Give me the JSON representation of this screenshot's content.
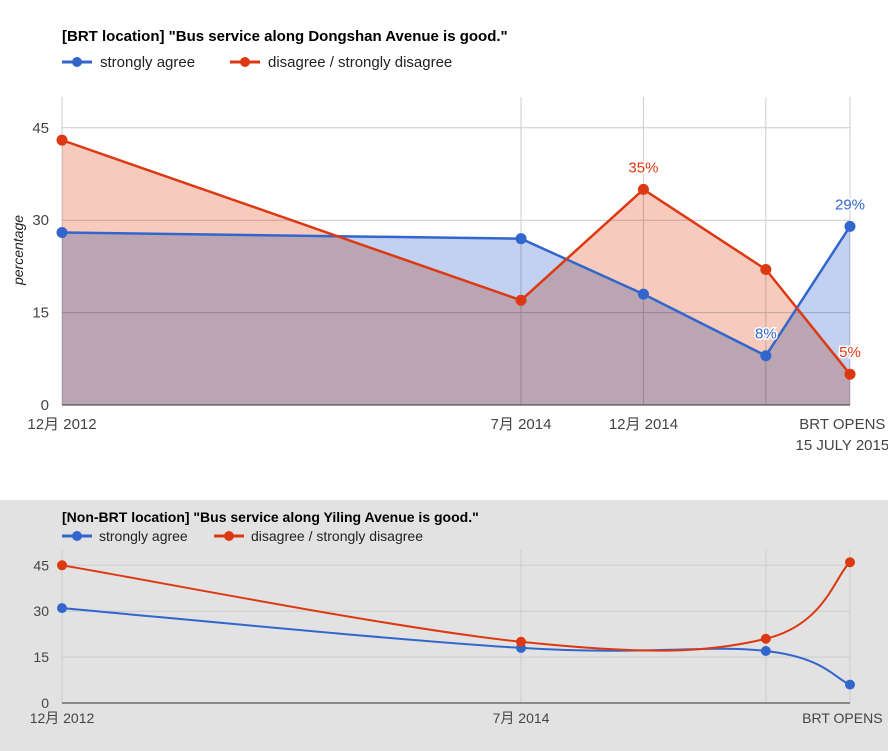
{
  "chart_data": [
    {
      "type": "area",
      "title": "[BRT location] \"Bus service along Dongshan Avenue is good.\"",
      "xlabel": "",
      "ylabel": "percentage",
      "ylim": [
        0,
        50
      ],
      "yticks": [
        0,
        15,
        30,
        45
      ],
      "grid": true,
      "legend": "top-left",
      "x_tick_labels": [
        {
          "label": "12月 2012",
          "at": 0
        },
        {
          "label": "7月 2014",
          "at": 3
        },
        {
          "label": "12月 2014",
          "at": 3.8
        },
        {
          "label": "BRT OPENS",
          "line2": "15 JULY 2015",
          "at": 5.1
        }
      ],
      "series": [
        {
          "name": "strongly agree",
          "color": "#3366cc",
          "fill": "#aec0ec",
          "x": [
            0,
            3,
            3.8,
            4.6,
            5.15
          ],
          "values": [
            28,
            27,
            18,
            8,
            29
          ],
          "annotations": [
            {
              "index": 3,
              "text": "8%"
            },
            {
              "index": 4,
              "text": "29%"
            }
          ]
        },
        {
          "name": "disagree / strongly disagree",
          "color": "#dc3912",
          "fill": "#f3b9a8",
          "x": [
            0,
            3,
            3.8,
            4.6,
            5.15
          ],
          "values": [
            43,
            17,
            35,
            22,
            5
          ],
          "annotations": [
            {
              "index": 2,
              "text": "35%"
            },
            {
              "index": 4,
              "text": "5%"
            }
          ]
        }
      ]
    },
    {
      "type": "line",
      "title": "[Non-BRT location] \"Bus service along Yiling Avenue is good.\"",
      "xlabel": "",
      "ylabel": "",
      "ylim": [
        0,
        50
      ],
      "yticks": [
        0,
        15,
        30,
        45
      ],
      "grid": true,
      "legend": "top-left",
      "x_tick_labels": [
        {
          "label": "12月 2012",
          "at": 0
        },
        {
          "label": "7月 2014",
          "at": 3
        },
        {
          "label": "BRT OPENS",
          "at": 5.1
        }
      ],
      "series": [
        {
          "name": "strongly agree",
          "color": "#3366cc",
          "x": [
            0,
            3,
            4.6,
            5.15
          ],
          "values": [
            31,
            18,
            17,
            6
          ]
        },
        {
          "name": "disagree / strongly disagree",
          "color": "#dc3912",
          "x": [
            0,
            3,
            4.6,
            5.15
          ],
          "values": [
            45,
            20,
            21,
            46
          ]
        }
      ]
    }
  ]
}
